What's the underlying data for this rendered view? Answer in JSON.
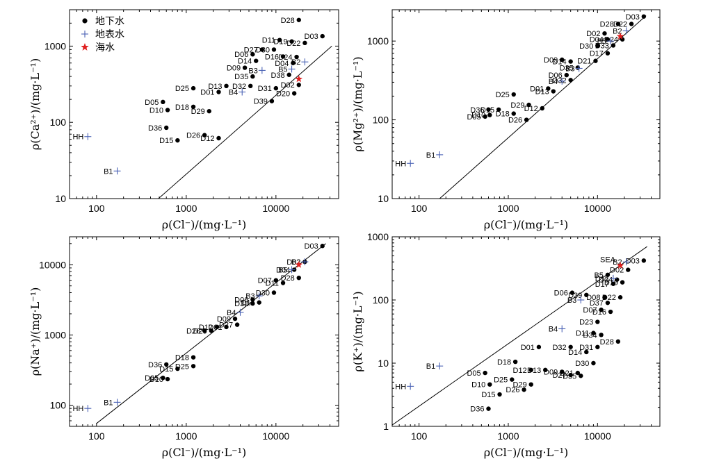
{
  "colors": {
    "groundwater": "#000000",
    "surface": "#4a62b5",
    "seawater": "#e02020"
  },
  "legend": {
    "groundwater": "地下水",
    "surface": "地表水",
    "seawater": "海水"
  },
  "chart_data": [
    {
      "id": "ca",
      "type": "scatter",
      "xlabel": "ρ(Cl⁻)/(mg·L⁻¹)",
      "ylabel": "ρ(Ca²⁺)/(mg·L⁻¹)",
      "xscale": "log",
      "yscale": "log",
      "xlim": [
        50,
        50000
      ],
      "ylim": [
        10,
        3000
      ],
      "xticks": [
        100,
        1000,
        10000
      ],
      "xtick_labels": [
        "100",
        "1000",
        "10000"
      ],
      "yticks": [
        10,
        100,
        1000
      ],
      "ytick_labels": [
        "10",
        "100",
        "1000"
      ],
      "legend_position": "top-left",
      "reference_line": [
        [
          490,
          10
        ],
        [
          42000,
          1000
        ]
      ],
      "series": [
        {
          "name": "地下水",
          "marker": "dot",
          "points": [
            {
              "label": "D28",
              "x": 18000,
              "y": 2200
            },
            {
              "label": "D03",
              "x": 33000,
              "y": 1350
            },
            {
              "label": "D11",
              "x": 11000,
              "y": 1200
            },
            {
              "label": "D19",
              "x": 15000,
              "y": 1150
            },
            {
              "label": "D22",
              "x": 21000,
              "y": 1100
            },
            {
              "label": "D27",
              "x": 7000,
              "y": 900
            },
            {
              "label": "D30",
              "x": 9500,
              "y": 900
            },
            {
              "label": "D06",
              "x": 5500,
              "y": 780
            },
            {
              "label": "D16",
              "x": 12000,
              "y": 730
            },
            {
              "label": "D24",
              "x": 17000,
              "y": 720
            },
            {
              "label": "D14",
              "x": 6000,
              "y": 640
            },
            {
              "label": "D04",
              "x": 15500,
              "y": 600
            },
            {
              "label": "D09",
              "x": 4500,
              "y": 520
            },
            {
              "label": "D35",
              "x": 5500,
              "y": 400
            },
            {
              "label": "D38",
              "x": 14000,
              "y": 420
            },
            {
              "label": "D13",
              "x": 2800,
              "y": 300
            },
            {
              "label": "D32",
              "x": 5200,
              "y": 300
            },
            {
              "label": "D31",
              "x": 10000,
              "y": 280
            },
            {
              "label": "D02",
              "x": 18000,
              "y": 310
            },
            {
              "label": "D25",
              "x": 1200,
              "y": 280
            },
            {
              "label": "D01",
              "x": 2300,
              "y": 250
            },
            {
              "label": "D20",
              "x": 16000,
              "y": 240
            },
            {
              "label": "D39",
              "x": 9000,
              "y": 190
            },
            {
              "label": "D05",
              "x": 550,
              "y": 185
            },
            {
              "label": "D18",
              "x": 1200,
              "y": 160
            },
            {
              "label": "D10",
              "x": 620,
              "y": 145
            },
            {
              "label": "D29",
              "x": 1800,
              "y": 140
            },
            {
              "label": "D36",
              "x": 600,
              "y": 85
            },
            {
              "label": "D26",
              "x": 1600,
              "y": 68
            },
            {
              "label": "D12",
              "x": 2300,
              "y": 62
            },
            {
              "label": "D15",
              "x": 800,
              "y": 58
            }
          ]
        },
        {
          "name": "地表水",
          "marker": "plus",
          "points": [
            {
              "label": "B2",
              "x": 21000,
              "y": 620
            },
            {
              "label": "B5",
              "x": 15000,
              "y": 500
            },
            {
              "label": "B3",
              "x": 7000,
              "y": 480
            },
            {
              "label": "B4",
              "x": 4200,
              "y": 250
            },
            {
              "label": "HH",
              "x": 80,
              "y": 65
            },
            {
              "label": "B1",
              "x": 170,
              "y": 23
            }
          ]
        },
        {
          "name": "海水",
          "marker": "star",
          "points": [
            {
              "label": "",
              "x": 18000,
              "y": 370
            }
          ]
        }
      ]
    },
    {
      "id": "mg",
      "type": "scatter",
      "xlabel": "ρ(Cl⁻)/(mg·L⁻¹)",
      "ylabel": "ρ(Mg²⁺)/(mg·L⁻¹)",
      "xscale": "log",
      "yscale": "log",
      "xlim": [
        50,
        50000
      ],
      "ylim": [
        10,
        2500
      ],
      "xticks": [
        100,
        1000,
        10000
      ],
      "xtick_labels": [
        "100",
        "1000",
        "10000"
      ],
      "yticks": [
        10,
        100,
        1000
      ],
      "ytick_labels": [
        "10",
        "100",
        "1000"
      ],
      "reference_line": [
        [
          170,
          10
        ],
        [
          35000,
          2100
        ]
      ],
      "series": [
        {
          "name": "地下水",
          "marker": "dot",
          "points": [
            {
              "label": "D03",
              "x": 33000,
              "y": 2050
            },
            {
              "label": "D22",
              "x": 24000,
              "y": 1650
            },
            {
              "label": "D28",
              "x": 17000,
              "y": 1650
            },
            {
              "label": "D02",
              "x": 12000,
              "y": 1250
            },
            {
              "label": "D04",
              "x": 13000,
              "y": 1050
            },
            {
              "label": "D24",
              "x": 19000,
              "y": 1050
            },
            {
              "label": "D30",
              "x": 10000,
              "y": 870
            },
            {
              "label": "D33",
              "x": 15000,
              "y": 880
            },
            {
              "label": "D09",
              "x": 4000,
              "y": 580
            },
            {
              "label": "D14",
              "x": 5000,
              "y": 550
            },
            {
              "label": "D21",
              "x": 9500,
              "y": 560
            },
            {
              "label": "D17",
              "x": 13000,
              "y": 700
            },
            {
              "label": "D35",
              "x": 6000,
              "y": 460
            },
            {
              "label": "D06",
              "x": 4500,
              "y": 370
            },
            {
              "label": "D32",
              "x": 5000,
              "y": 320
            },
            {
              "label": "D01",
              "x": 2800,
              "y": 250
            },
            {
              "label": "D13",
              "x": 3200,
              "y": 230
            },
            {
              "label": "D25",
              "x": 1150,
              "y": 210
            },
            {
              "label": "D29",
              "x": 1700,
              "y": 155
            },
            {
              "label": "D12",
              "x": 2400,
              "y": 140
            },
            {
              "label": "D36",
              "x": 600,
              "y": 135
            },
            {
              "label": "D15",
              "x": 780,
              "y": 135
            },
            {
              "label": "D10",
              "x": 620,
              "y": 115
            },
            {
              "label": "D18",
              "x": 1150,
              "y": 120
            },
            {
              "label": "D05",
              "x": 550,
              "y": 110
            },
            {
              "label": "D26",
              "x": 1600,
              "y": 100
            }
          ]
        },
        {
          "name": "地表水",
          "marker": "plus",
          "points": [
            {
              "label": "B2",
              "x": 21000,
              "y": 1350
            },
            {
              "label": "B5",
              "x": 14000,
              "y": 1000
            },
            {
              "label": "B3",
              "x": 6200,
              "y": 450
            },
            {
              "label": "B4",
              "x": 4000,
              "y": 310
            },
            {
              "label": "B1",
              "x": 170,
              "y": 36
            },
            {
              "label": "HH",
              "x": 80,
              "y": 28
            }
          ]
        },
        {
          "name": "海水",
          "marker": "star",
          "points": [
            {
              "label": "",
              "x": 18000,
              "y": 1150
            }
          ]
        }
      ]
    },
    {
      "id": "na",
      "type": "scatter",
      "xlabel": "ρ(Cl⁻)/(mg·L⁻¹)",
      "ylabel": "ρ(Na⁺)/(mg·L⁻¹)",
      "xscale": "log",
      "yscale": "log",
      "xlim": [
        50,
        50000
      ],
      "ylim": [
        50,
        25000
      ],
      "xticks": [
        100,
        1000,
        10000
      ],
      "xtick_labels": [
        "100",
        "1000",
        "10000"
      ],
      "yticks": [
        100,
        1000,
        10000
      ],
      "ytick_labels": [
        "100",
        "1000",
        "10000"
      ],
      "reference_line": [
        [
          100,
          55
        ],
        [
          36000,
          20000
        ]
      ],
      "series": [
        {
          "name": "地下水",
          "marker": "dot",
          "points": [
            {
              "label": "D03",
              "x": 33000,
              "y": 18500
            },
            {
              "label": "D02",
              "x": 21000,
              "y": 11000
            },
            {
              "label": "D04",
              "x": 16000,
              "y": 8500
            },
            {
              "label": "D28",
              "x": 18000,
              "y": 6500
            },
            {
              "label": "D07",
              "x": 10000,
              "y": 6000
            },
            {
              "label": "D11",
              "x": 12000,
              "y": 5500
            },
            {
              "label": "D30",
              "x": 9500,
              "y": 4000
            },
            {
              "label": "D06",
              "x": 5500,
              "y": 3200
            },
            {
              "label": "D32",
              "x": 5500,
              "y": 2800
            },
            {
              "label": "D14",
              "x": 6500,
              "y": 2900
            },
            {
              "label": "D09",
              "x": 3500,
              "y": 1700
            },
            {
              "label": "D27",
              "x": 3700,
              "y": 1400
            },
            {
              "label": "D12",
              "x": 2200,
              "y": 1300
            },
            {
              "label": "D26",
              "x": 1600,
              "y": 1150
            },
            {
              "label": "D29",
              "x": 1900,
              "y": 1150
            },
            {
              "label": "D01",
              "x": 2800,
              "y": 1300
            },
            {
              "label": "D18",
              "x": 1200,
              "y": 480
            },
            {
              "label": "D25",
              "x": 1200,
              "y": 360
            },
            {
              "label": "D36",
              "x": 600,
              "y": 380
            },
            {
              "label": "D15",
              "x": 800,
              "y": 330
            },
            {
              "label": "D05",
              "x": 550,
              "y": 245
            },
            {
              "label": "D10",
              "x": 620,
              "y": 235
            }
          ]
        },
        {
          "name": "地表水",
          "marker": "plus",
          "points": [
            {
              "label": "B2",
              "x": 21000,
              "y": 11000
            },
            {
              "label": "B5",
              "x": 15000,
              "y": 8500
            },
            {
              "label": "B3",
              "x": 6500,
              "y": 3600
            },
            {
              "label": "B4",
              "x": 4000,
              "y": 2100
            },
            {
              "label": "B1",
              "x": 170,
              "y": 110
            },
            {
              "label": "HH",
              "x": 80,
              "y": 90
            }
          ]
        },
        {
          "name": "海水",
          "marker": "star",
          "points": [
            {
              "label": "",
              "x": 18000,
              "y": 10000
            }
          ]
        }
      ]
    },
    {
      "id": "k",
      "type": "scatter",
      "xlabel": "ρ(Cl⁻)/(mg·L⁻¹)",
      "ylabel": "ρ(K⁺)/(mg·L⁻¹)",
      "xscale": "log",
      "yscale": "log",
      "xlim": [
        50,
        50000
      ],
      "ylim": [
        1,
        1000
      ],
      "xticks": [
        100,
        1000,
        10000
      ],
      "xtick_labels": [
        "100",
        "1000",
        "10000"
      ],
      "yticks": [
        1,
        10,
        100,
        1000
      ],
      "ytick_labels": [
        "1",
        "10",
        "100",
        "1000"
      ],
      "reference_line": [
        [
          50,
          1.05
        ],
        [
          36000,
          700
        ]
      ],
      "series": [
        {
          "name": "地下水",
          "marker": "dot",
          "points": [
            {
              "label": "D03",
              "x": 33000,
              "y": 420
            },
            {
              "label": "D02",
              "x": 22000,
              "y": 300
            },
            {
              "label": "D19",
              "x": 19000,
              "y": 190
            },
            {
              "label": "D17",
              "x": 15000,
              "y": 180
            },
            {
              "label": "D22",
              "x": 18000,
              "y": 110
            },
            {
              "label": "D06",
              "x": 5200,
              "y": 130
            },
            {
              "label": "D08",
              "x": 12000,
              "y": 110
            },
            {
              "label": "D37",
              "x": 13000,
              "y": 90
            },
            {
              "label": "D07",
              "x": 11000,
              "y": 70
            },
            {
              "label": "D16",
              "x": 14000,
              "y": 65
            },
            {
              "label": "D23",
              "x": 10000,
              "y": 45
            },
            {
              "label": "D11",
              "x": 9000,
              "y": 30
            },
            {
              "label": "D34",
              "x": 11000,
              "y": 28
            },
            {
              "label": "D28",
              "x": 17000,
              "y": 22
            },
            {
              "label": "D31",
              "x": 10000,
              "y": 18
            },
            {
              "label": "D14",
              "x": 7500,
              "y": 15
            },
            {
              "label": "D32",
              "x": 5000,
              "y": 18
            },
            {
              "label": "D01",
              "x": 2200,
              "y": 18
            },
            {
              "label": "D18",
              "x": 1200,
              "y": 10.5
            },
            {
              "label": "D12",
              "x": 1800,
              "y": 7.8
            },
            {
              "label": "D13",
              "x": 2600,
              "y": 7.8
            },
            {
              "label": "D09",
              "x": 4000,
              "y": 7.3
            },
            {
              "label": "D21",
              "x": 6000,
              "y": 7
            },
            {
              "label": "D30",
              "x": 9000,
              "y": 10
            },
            {
              "label": "D27",
              "x": 5000,
              "y": 6.5
            },
            {
              "label": "D35",
              "x": 6500,
              "y": 6.3
            },
            {
              "label": "D25",
              "x": 1100,
              "y": 5.5
            },
            {
              "label": "D05",
              "x": 550,
              "y": 7
            },
            {
              "label": "D10",
              "x": 620,
              "y": 4.6
            },
            {
              "label": "D29",
              "x": 1800,
              "y": 4.6
            },
            {
              "label": "D26",
              "x": 1500,
              "y": 3.8
            },
            {
              "label": "D15",
              "x": 800,
              "y": 3.2
            },
            {
              "label": "D36",
              "x": 600,
              "y": 1.9
            },
            {
              "label": "D39",
              "x": 7500,
              "y": 120
            },
            {
              "label": "D04",
              "x": 16500,
              "y": 210
            },
            {
              "label": "B5",
              "x": 13000,
              "y": 250
            }
          ]
        },
        {
          "name": "地表水",
          "marker": "plus",
          "points": [
            {
              "label": "B2",
              "x": 21000,
              "y": 400
            },
            {
              "label": "D17",
              "x": 15000,
              "y": 220
            },
            {
              "label": "B3",
              "x": 6500,
              "y": 100
            },
            {
              "label": "B4",
              "x": 4000,
              "y": 35
            },
            {
              "label": "B1",
              "x": 170,
              "y": 9
            },
            {
              "label": "HH",
              "x": 80,
              "y": 4.3
            }
          ]
        },
        {
          "name": "海水",
          "marker": "star",
          "points": [
            {
              "label": "SEA",
              "x": 18000,
              "y": 350
            }
          ]
        }
      ]
    }
  ]
}
